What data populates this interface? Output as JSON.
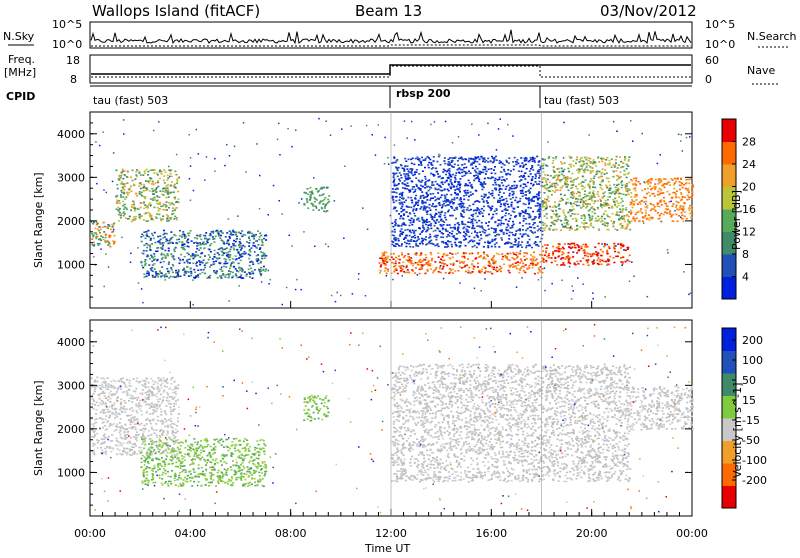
{
  "header": {
    "station": "Wallops Island (fitACF)",
    "beam": "Beam 13",
    "date": "03/Nov/2012"
  },
  "top_panels": {
    "nsky_label": "N.Sky",
    "nsearch_label": "N.Search",
    "nsky_ticks": [
      "10^5",
      "10^0"
    ],
    "nsearch_ticks": [
      "10^5",
      "10^0"
    ],
    "freq_label_1": "Freq.",
    "freq_label_2": "[MHz]",
    "freq_ticks": [
      "18",
      "8"
    ],
    "nave_label": "Nave",
    "nave_ticks": [
      "60",
      "0"
    ],
    "cpid_label": "CPID",
    "cpid_segments": [
      {
        "label": "tau (fast) 503",
        "start_hour": 0,
        "end_hour": 12
      },
      {
        "label": "rbsp 200",
        "start_hour": 12,
        "end_hour": 18
      },
      {
        "label": "tau (fast) 503",
        "start_hour": 18,
        "end_hour": 24
      }
    ]
  },
  "chart_data": [
    {
      "type": "heatmap",
      "name": "power-panel",
      "ylabel": "Slant Range [km]",
      "xlim": [
        0,
        24
      ],
      "ylim": [
        0,
        4500
      ],
      "y_ticks": [
        1000,
        2000,
        3000,
        4000
      ],
      "colorbar": {
        "label": "Power [dB]",
        "ticks": [
          "4",
          "8",
          "12",
          "16",
          "20",
          "24",
          "28"
        ],
        "range": [
          0,
          30
        ]
      },
      "scatter_regions": [
        {
          "x": [
            0.0,
            1.0
          ],
          "y": [
            1400,
            2000
          ],
          "value": "green/orange"
        },
        {
          "x": [
            1.0,
            3.5
          ],
          "y": [
            2000,
            3200
          ],
          "value": "green/yellow"
        },
        {
          "x": [
            2.0,
            7.0
          ],
          "y": [
            700,
            1800
          ],
          "value": "blue/green"
        },
        {
          "x": [
            8.5,
            9.5
          ],
          "y": [
            2200,
            2800
          ],
          "value": "green"
        },
        {
          "x": [
            11.5,
            18.0
          ],
          "y": [
            800,
            1300
          ],
          "value": "red/orange"
        },
        {
          "x": [
            12.0,
            18.0
          ],
          "y": [
            1400,
            3500
          ],
          "value": "blue"
        },
        {
          "x": [
            18.0,
            21.5
          ],
          "y": [
            1000,
            1500
          ],
          "value": "red"
        },
        {
          "x": [
            18.0,
            21.5
          ],
          "y": [
            1800,
            3500
          ],
          "value": "yellow/green"
        },
        {
          "x": [
            21.5,
            24.0
          ],
          "y": [
            2000,
            3000
          ],
          "value": "orange"
        }
      ]
    },
    {
      "type": "heatmap",
      "name": "velocity-panel",
      "ylabel": "Slant Range [km]",
      "xlabel": "Time UT",
      "xlim": [
        0,
        24
      ],
      "ylim": [
        0,
        4500
      ],
      "y_ticks": [
        1000,
        2000,
        3000,
        4000
      ],
      "x_ticks": [
        "00:00",
        "04:00",
        "08:00",
        "12:00",
        "16:00",
        "20:00",
        "00:00"
      ],
      "colorbar": {
        "label": "Velocity [m s^-1]",
        "ticks": [
          "200",
          "100",
          "50",
          "15",
          "-15",
          "-50",
          "-100",
          "-200"
        ],
        "range": [
          -250,
          250
        ]
      },
      "scatter_regions": [
        {
          "x": [
            0.0,
            3.5
          ],
          "y": [
            1400,
            3200
          ],
          "value": "ground scatter gray"
        },
        {
          "x": [
            2.0,
            7.0
          ],
          "y": [
            700,
            1800
          ],
          "value": "green"
        },
        {
          "x": [
            8.5,
            9.5
          ],
          "y": [
            2200,
            2800
          ],
          "value": "green"
        },
        {
          "x": [
            12.0,
            21.5
          ],
          "y": [
            800,
            3500
          ],
          "value": "ground scatter gray"
        },
        {
          "x": [
            21.5,
            24.0
          ],
          "y": [
            2000,
            3000
          ],
          "value": "ground scatter gray"
        }
      ]
    }
  ],
  "colors": {
    "power_scale": [
      "#0020e0",
      "#2050b8",
      "#3f8a68",
      "#58a95a",
      "#b9c63a",
      "#f0a02a",
      "#ff6a00",
      "#e80000"
    ],
    "velocity_scale": [
      "#e80000",
      "#ff6a00",
      "#f0a02a",
      "#c8c8c8",
      "#7ecb3e",
      "#3f8a68",
      "#2050b8",
      "#0020e0"
    ],
    "ground_scatter": "#bfbfbf"
  }
}
